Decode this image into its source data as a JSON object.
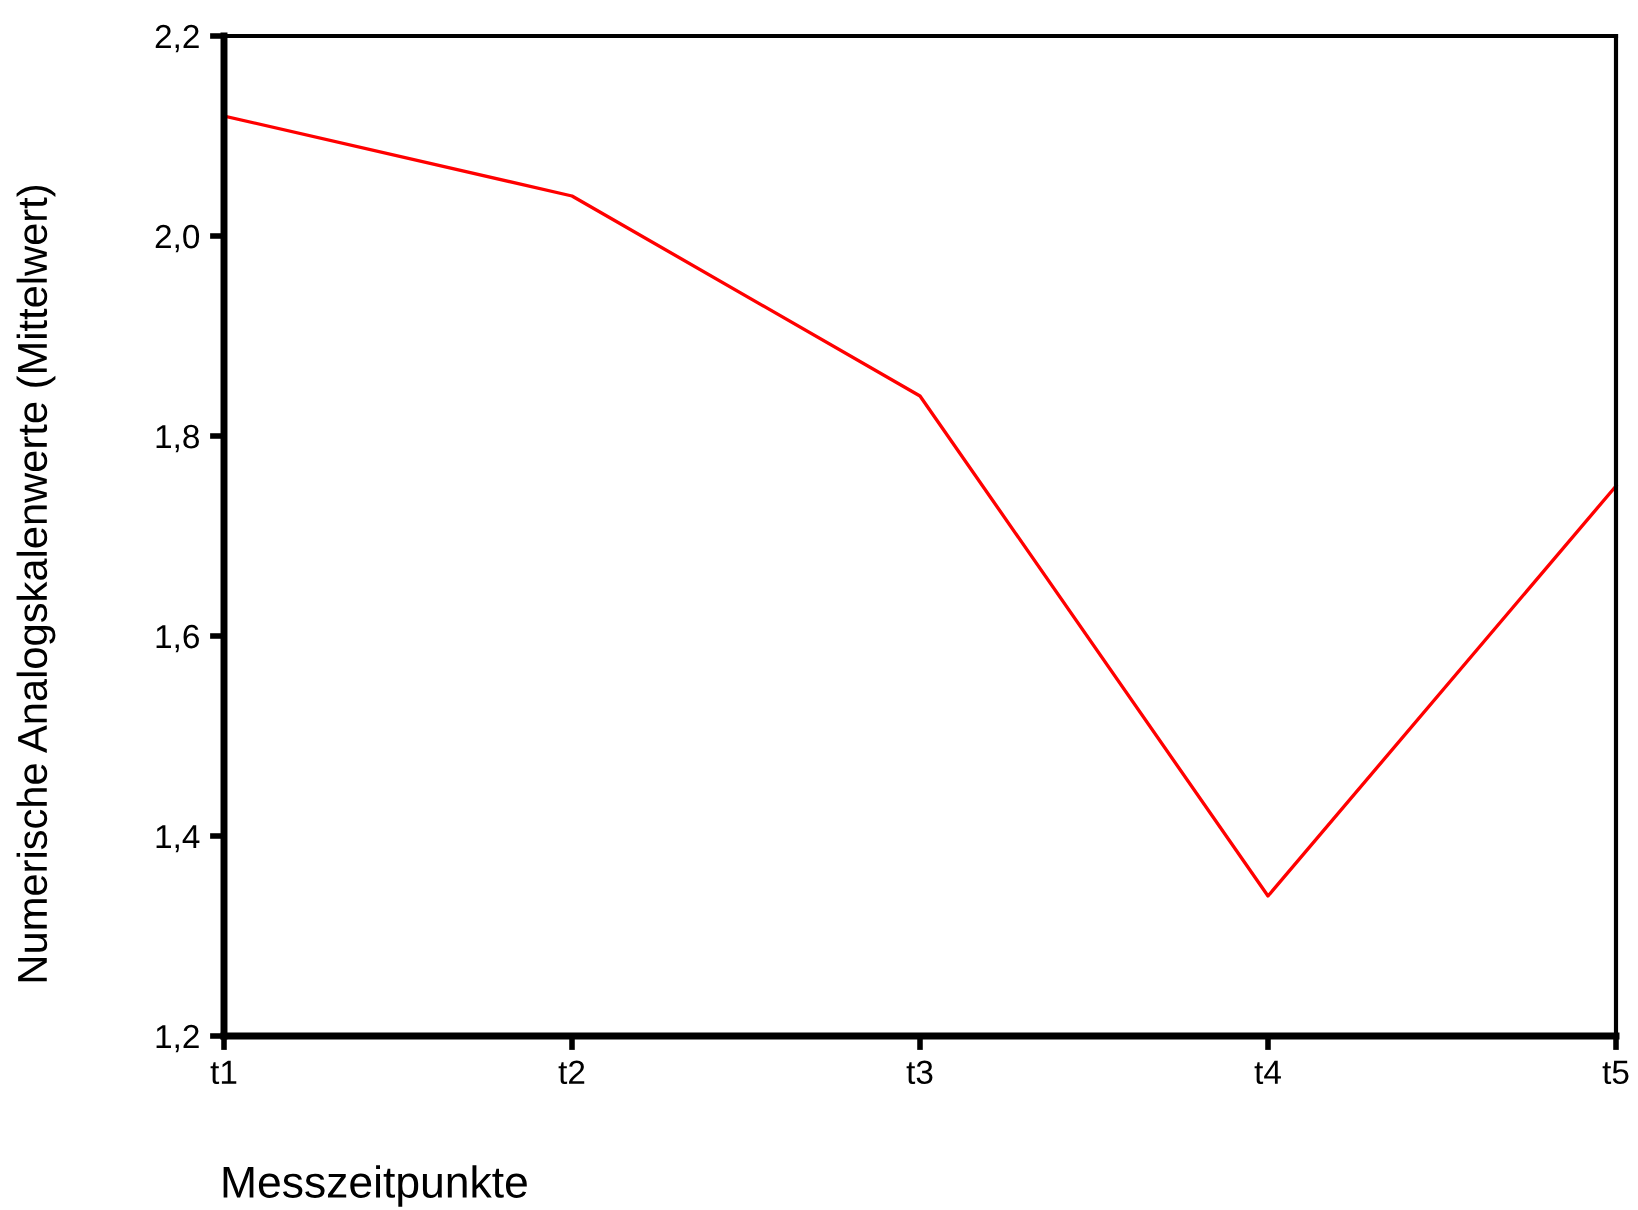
{
  "chart_data": {
    "type": "line",
    "xlabel": "Messzeitpunkte",
    "ylabel": "Numerische Analogskalenwerte (Mittelwert)",
    "categories": [
      "t1",
      "t2",
      "t3",
      "t4",
      "t5"
    ],
    "series": [
      {
        "color": "#ff0000",
        "values": [
          2.12,
          2.04,
          1.84,
          1.34,
          1.75
        ]
      }
    ],
    "ylim": [
      1.2,
      2.2
    ],
    "yticks": [
      {
        "value": 1.2,
        "label": "1,2"
      },
      {
        "value": 1.4,
        "label": "1,4"
      },
      {
        "value": 1.6,
        "label": "1,6"
      },
      {
        "value": 1.8,
        "label": "1,8"
      },
      {
        "value": 2.0,
        "label": "2,0"
      },
      {
        "value": 2.2,
        "label": "2,2"
      }
    ],
    "grid": false,
    "legend": false,
    "marker": "none",
    "line_style": "solid"
  }
}
